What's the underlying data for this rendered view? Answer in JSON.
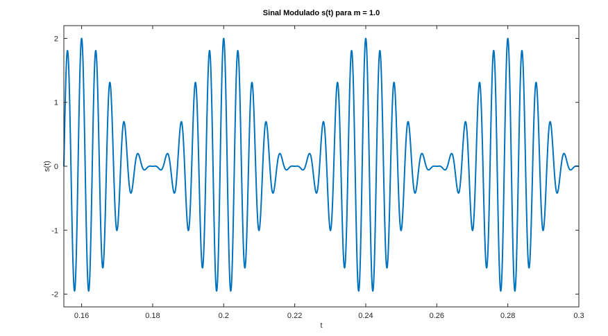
{
  "chart_data": {
    "type": "line",
    "title": "Sinal Modulado s(t) para m = 1.0",
    "xlabel": "t",
    "ylabel": "s(t)",
    "xlim": [
      0.155,
      0.3
    ],
    "ylim": [
      -2.2,
      2.2
    ],
    "xticks": [
      0.16,
      0.18,
      0.2,
      0.22,
      0.24,
      0.26,
      0.28,
      0.3
    ],
    "xtick_labels": [
      "0.16",
      "0.18",
      "0.2",
      "0.22",
      "0.24",
      "0.26",
      "0.28",
      "0.3"
    ],
    "yticks": [
      -2,
      -1,
      0,
      1,
      2
    ],
    "ytick_labels": [
      "-2",
      "-1",
      "0",
      "1",
      "2"
    ],
    "grid": false,
    "box": true,
    "series": [
      {
        "color": "#0072bd",
        "expression": "s(t) = (1 + m*cos(2*pi*fm*t)) * cos(2*pi*fc*t)",
        "m": 1.0,
        "fm": 25,
        "fc": 250,
        "t_start": 0.155,
        "t_end": 0.3
      }
    ]
  }
}
